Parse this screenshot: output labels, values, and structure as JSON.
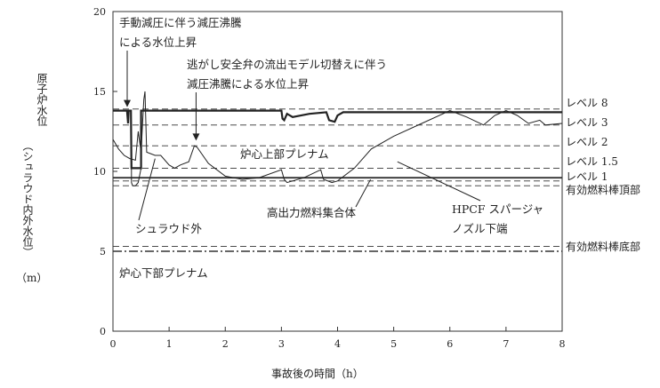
{
  "chart_data": {
    "type": "line",
    "ylabel": "原子炉水位",
    "ylabel_sub": "（シュラウド内外水位）",
    "yunit": "（m）",
    "xlabel": "事故後の時間（h）",
    "xlim": [
      0,
      8
    ],
    "ylim": [
      0,
      20
    ],
    "xticks": [
      "0",
      "1",
      "2",
      "3",
      "4",
      "5",
      "6",
      "7",
      "8"
    ],
    "yticks": [
      "0",
      "5",
      "10",
      "15",
      "20"
    ],
    "reference_lines": [
      {
        "label": "レベル 8",
        "y": 13.9,
        "style": "dashed"
      },
      {
        "label": "レベル 3",
        "y": 12.9,
        "style": "dashed"
      },
      {
        "label": "レベル 2",
        "y": 11.6,
        "style": "dashed"
      },
      {
        "label": "レベル 1.5",
        "y": 10.2,
        "style": "dashed"
      },
      {
        "label": "レベル 1",
        "y": 9.4,
        "style": "dashed"
      },
      {
        "label": "有効燃料棒頂部",
        "y": 9.1,
        "style": "dashed"
      },
      {
        "label": "",
        "y": 9.6,
        "style": "solid"
      },
      {
        "label": "",
        "y": 5.3,
        "style": "dashed"
      },
      {
        "label": "有効燃料棒底部",
        "y": 5.0,
        "style": "dashdot"
      }
    ],
    "series": [
      {
        "name": "",
        "style": "thick",
        "x": [
          0,
          0.25,
          0.27,
          0.28,
          0.32,
          0.33,
          0.5,
          0.5,
          0.58,
          0.58,
          0.9,
          1.0,
          1.2,
          1.4,
          1.6,
          2.0,
          2.5,
          3.0,
          3.02,
          3.05,
          3.1,
          3.2,
          3.5,
          3.8,
          3.85,
          3.95,
          4.0,
          4.1,
          5.0,
          6.0,
          7.0,
          8.0
        ],
        "y": [
          13.8,
          13.8,
          13.0,
          13.8,
          13.8,
          10.2,
          10.2,
          13.8,
          13.8,
          13.8,
          13.8,
          13.8,
          13.8,
          13.8,
          13.8,
          13.8,
          13.8,
          13.8,
          13.3,
          13.2,
          13.6,
          13.4,
          13.6,
          13.7,
          13.2,
          13.1,
          13.5,
          13.7,
          13.7,
          13.7,
          13.7,
          13.7
        ]
      },
      {
        "name": "",
        "style": "thin",
        "x": [
          0,
          0.1,
          0.2,
          0.3,
          0.4,
          0.45,
          0.5,
          0.55,
          0.57,
          0.6,
          0.75,
          0.85,
          1.0,
          1.1,
          1.2,
          1.35,
          1.45,
          1.5,
          1.7,
          2.0,
          2.3,
          2.6,
          3.0,
          3.05,
          3.1,
          3.4,
          3.7,
          3.75,
          3.9,
          4.0,
          4.3,
          4.6,
          5.0,
          5.5,
          6.0,
          6.3,
          6.6,
          6.8,
          7.0,
          7.2,
          7.4,
          7.6,
          7.7,
          8.0
        ],
        "y": [
          12.0,
          11.4,
          11.0,
          10.8,
          10.7,
          12.5,
          11.2,
          14.5,
          15.0,
          11.2,
          11.0,
          11.0,
          10.4,
          10.2,
          10.4,
          10.6,
          11.6,
          11.5,
          10.5,
          9.7,
          9.5,
          9.6,
          10.1,
          9.5,
          9.3,
          9.6,
          10.1,
          9.5,
          9.3,
          9.4,
          10.2,
          11.4,
          12.2,
          13.0,
          13.8,
          13.4,
          12.9,
          13.5,
          13.8,
          13.5,
          13.0,
          13.2,
          12.9,
          13.0
        ]
      },
      {
        "name": "",
        "style": "thin",
        "x": [
          0.33,
          0.33,
          0.35,
          0.4,
          0.45,
          0.5
        ],
        "y": [
          10.2,
          9.3,
          9.1,
          9.1,
          9.3,
          10.2
        ]
      }
    ],
    "annotations": [
      {
        "text": "手動減圧に伴う減圧沸騰",
        "line2": "による水位上昇",
        "target": [
          0.27,
          13.8
        ]
      },
      {
        "text": "逃がし安全弁の流出モデル切替えに伴う",
        "line2": "減圧沸騰による水位上昇",
        "target": [
          1.48,
          11.7
        ]
      },
      {
        "text": "炉心上部プレナム"
      },
      {
        "text": "シュラウド外",
        "target": [
          0.75,
          10.8
        ]
      },
      {
        "text": "高出力燃料集合体",
        "target": [
          5.3,
          9.6
        ]
      },
      {
        "text": "HPCF スパージャ",
        "line2": "ノズル下端",
        "target": [
          5.7,
          9.6
        ]
      },
      {
        "text": "炉心下部プレナム"
      }
    ]
  }
}
